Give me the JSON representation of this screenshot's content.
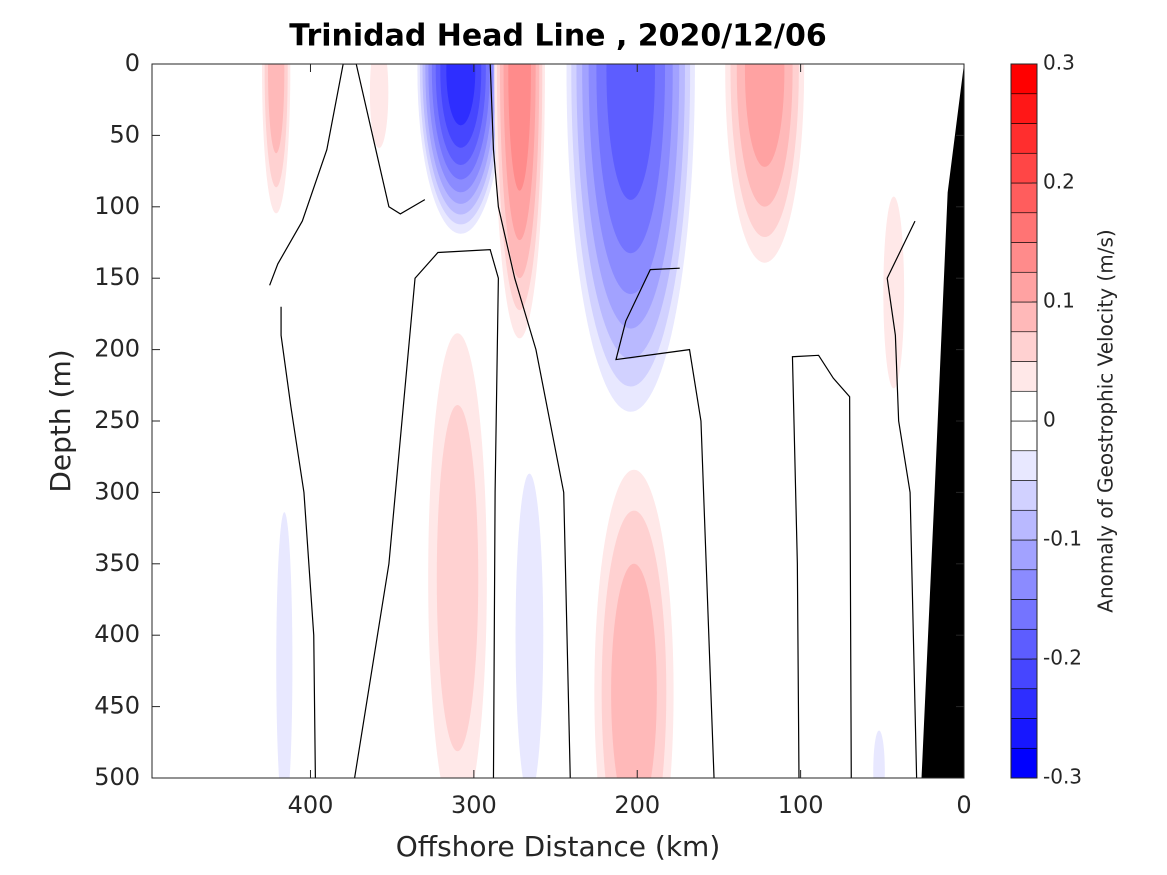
{
  "chart_data": {
    "type": "contour",
    "title": "Trinidad Head Line , 2020/12/06",
    "xlabel": "Offshore Distance (km)",
    "ylabel": "Depth (m)",
    "xlim": [
      0,
      497
    ],
    "x_reversed": true,
    "xticks": [
      0,
      100,
      200,
      300,
      400
    ],
    "ylim": [
      0,
      500
    ],
    "y_reversed": true,
    "yticks": [
      0,
      50,
      100,
      150,
      200,
      250,
      300,
      350,
      400,
      450,
      500
    ],
    "colorbar": {
      "label": "Anomaly of Geostrophic Velocity (m/s)",
      "clim": [
        -0.3,
        0.3
      ],
      "ticks": [
        -0.3,
        -0.2,
        -0.1,
        0,
        0.1,
        0.2,
        0.3
      ],
      "level_step": 0.025,
      "colors": [
        "#0000ff",
        "#ffffff",
        "#ff0000"
      ]
    },
    "patches": [
      {
        "x": 308,
        "depth": 5,
        "half_width": 28,
        "half_height": 120,
        "value": -0.25
      },
      {
        "x": 272,
        "depth": 5,
        "half_width": 17,
        "half_height": 205,
        "value": 0.15
      },
      {
        "x": 204,
        "depth": 5,
        "half_width": 42,
        "half_height": 255,
        "value": -0.2
      },
      {
        "x": 421,
        "depth": 5,
        "half_width": 10,
        "half_height": 115,
        "value": 0.1
      },
      {
        "x": 358,
        "depth": 20,
        "half_width": 8,
        "half_height": 55,
        "value": 0.05
      },
      {
        "x": 122,
        "depth": 5,
        "half_width": 27,
        "half_height": 150,
        "value": 0.125
      },
      {
        "x": 43,
        "depth": 160,
        "half_width": 9,
        "half_height": 95,
        "value": 0.05
      },
      {
        "x": 310,
        "depth": 360,
        "half_width": 22,
        "half_height": 210,
        "value": 0.075
      },
      {
        "x": 202,
        "depth": 440,
        "half_width": 28,
        "half_height": 180,
        "value": 0.1
      },
      {
        "x": 266,
        "depth": 400,
        "half_width": 12,
        "half_height": 160,
        "value": -0.05
      },
      {
        "x": 416,
        "depth": 420,
        "half_width": 7,
        "half_height": 150,
        "value": -0.05
      },
      {
        "x": 52,
        "depth": 495,
        "half_width": 5,
        "half_height": 40,
        "value": -0.05
      }
    ],
    "zero_contours": [
      {
        "x": [
          397,
          398,
          404,
          412,
          418,
          418
        ],
        "depth": [
          500,
          400,
          300,
          240,
          190,
          170
        ]
      },
      {
        "x": [
          373,
          352,
          340,
          336,
          322,
          290,
          285,
          287,
          288
        ],
        "depth": [
          500,
          350,
          200,
          150,
          132,
          130,
          150,
          300,
          500
        ]
      },
      {
        "x": [
          241,
          245,
          262,
          275,
          285,
          288,
          290
        ],
        "depth": [
          500,
          300,
          200,
          150,
          100,
          60,
          0
        ]
      },
      {
        "x": [
          153,
          161,
          168,
          213,
          207,
          192,
          174
        ],
        "depth": [
          500,
          250,
          200,
          207,
          180,
          144,
          143
        ]
      },
      {
        "x": [
          101,
          102,
          105,
          89,
          80,
          70,
          69
        ],
        "depth": [
          500,
          350,
          205,
          204,
          220,
          233,
          500
        ]
      },
      {
        "x": [
          29,
          33,
          40,
          42,
          47,
          30
        ],
        "depth": [
          500,
          300,
          250,
          190,
          150,
          110
        ]
      },
      {
        "x": [
          425,
          420,
          405,
          390,
          380,
          372,
          360,
          352,
          345,
          330
        ],
        "depth": [
          155,
          140,
          110,
          60,
          0,
          0,
          60,
          100,
          105,
          95
        ]
      }
    ],
    "bottom": {
      "color": "#000000",
      "x": [
        0,
        0,
        26,
        18,
        10,
        0
      ],
      "depth": [
        0,
        500,
        500,
        300,
        90,
        0
      ]
    }
  }
}
